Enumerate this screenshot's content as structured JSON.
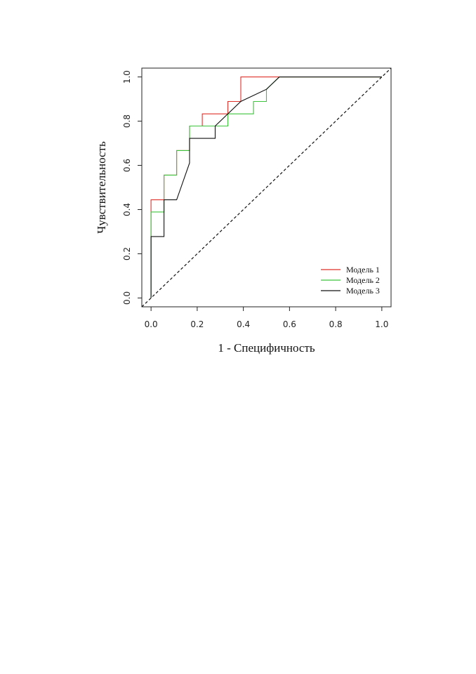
{
  "chart_data": {
    "type": "line",
    "xlabel": "1 - Специфичность",
    "ylabel": "Чувствительность",
    "xlim": [
      -0.04,
      1.04
    ],
    "ylim": [
      -0.04,
      1.04
    ],
    "xticks": [
      0.0,
      0.2,
      0.4,
      0.6,
      0.8,
      1.0
    ],
    "yticks": [
      0.0,
      0.2,
      0.4,
      0.6,
      0.8,
      1.0
    ],
    "x_tick_labels": [
      "0.0",
      "0.2",
      "0.4",
      "0.6",
      "0.8",
      "1.0"
    ],
    "y_tick_labels": [
      "0.0",
      "0.2",
      "0.4",
      "0.6",
      "0.8",
      "1.0"
    ],
    "grid": false,
    "legend_position": "bottom-right",
    "series": [
      {
        "name": "Модель 1",
        "color": "#e0302a",
        "x": [
          0.0,
          0.0,
          0.056,
          0.056,
          0.111,
          0.111,
          0.167,
          0.167,
          0.222,
          0.222,
          0.333,
          0.333,
          0.389,
          0.389,
          1.0
        ],
        "y": [
          0.0,
          0.444,
          0.444,
          0.556,
          0.556,
          0.667,
          0.667,
          0.778,
          0.778,
          0.833,
          0.833,
          0.889,
          0.889,
          1.0,
          1.0
        ]
      },
      {
        "name": "Модель 2",
        "color": "#3cc43c",
        "x": [
          0.0,
          0.0,
          0.056,
          0.056,
          0.111,
          0.111,
          0.167,
          0.167,
          0.333,
          0.333,
          0.444,
          0.444,
          0.5,
          0.5,
          0.556,
          1.0
        ],
        "y": [
          0.0,
          0.389,
          0.389,
          0.556,
          0.556,
          0.667,
          0.667,
          0.778,
          0.778,
          0.833,
          0.833,
          0.889,
          0.889,
          0.944,
          1.0,
          1.0
        ]
      },
      {
        "name": "Модель 3",
        "color": "#111111",
        "x": [
          0.0,
          0.0,
          0.056,
          0.056,
          0.111,
          0.167,
          0.167,
          0.278,
          0.278,
          0.389,
          0.5,
          0.556,
          1.0
        ],
        "y": [
          0.0,
          0.278,
          0.278,
          0.444,
          0.444,
          0.611,
          0.722,
          0.722,
          0.778,
          0.889,
          0.944,
          1.0,
          1.0
        ]
      }
    ],
    "reference_line": {
      "style": "dashed",
      "color": "#111111",
      "x": [
        -0.04,
        1.04
      ],
      "y": [
        -0.04,
        1.04
      ]
    }
  }
}
